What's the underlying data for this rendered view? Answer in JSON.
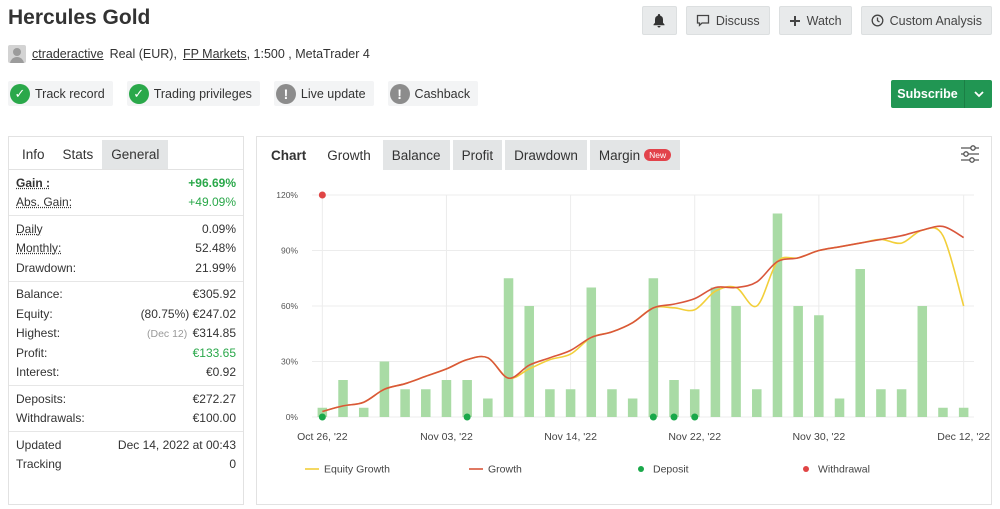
{
  "title": "Hercules Gold",
  "actions": {
    "discuss": "Discuss",
    "watch": "Watch",
    "custom": "Custom Analysis"
  },
  "account": {
    "user": "ctraderactive",
    "type": "Real (EUR),",
    "broker": "FP Markets",
    "details": ", 1:500 , MetaTrader 4"
  },
  "badges": [
    {
      "label": "Track record",
      "status": "ok"
    },
    {
      "label": "Trading privileges",
      "status": "ok"
    },
    {
      "label": "Live update",
      "status": "warn"
    },
    {
      "label": "Cashback",
      "status": "warn"
    }
  ],
  "subscribe": "Subscribe",
  "left_tabs": [
    "Info",
    "Stats",
    "General"
  ],
  "stats": {
    "gain": {
      "k": "Gain :",
      "v": "+96.69%"
    },
    "abs_gain": {
      "k": "Abs. Gain:",
      "v": "+49.09%"
    },
    "daily": {
      "k": "Daily",
      "v": "0.09%"
    },
    "monthly": {
      "k": "Monthly:",
      "v": "52.48%"
    },
    "drawdown": {
      "k": "Drawdown:",
      "v": "21.99%"
    },
    "balance": {
      "k": "Balance:",
      "v": "€305.92"
    },
    "equity": {
      "k": "Equity:",
      "note": "(80.75%)",
      "v": "€247.02"
    },
    "highest": {
      "k": "Highest:",
      "note": "(Dec 12)",
      "v": "€314.85"
    },
    "profit": {
      "k": "Profit:",
      "v": "€133.65"
    },
    "interest": {
      "k": "Interest:",
      "v": "€0.92"
    },
    "deposits": {
      "k": "Deposits:",
      "v": "€272.27"
    },
    "withdrawals": {
      "k": "Withdrawals:",
      "v": "€100.00"
    },
    "updated": {
      "k": "Updated",
      "v": "Dec 14, 2022 at 00:43"
    },
    "tracking": {
      "k": "Tracking",
      "v": "0"
    }
  },
  "chart_tabs": {
    "chart": "Chart",
    "growth": "Growth",
    "balance": "Balance",
    "profit": "Profit",
    "drawdown": "Drawdown",
    "margin": "Margin",
    "new": "New"
  },
  "colors": {
    "equity": "#f2cf3a",
    "growth": "#d9563b",
    "deposit": "#1aa84a",
    "withdrawal": "#e04545",
    "bar": "#a9dba5"
  },
  "chart_data": {
    "type": "bar+line",
    "y_ticks": [
      "0%",
      "30%",
      "60%",
      "90%",
      "120%"
    ],
    "ylim": [
      0,
      120
    ],
    "x_ticks": [
      "Oct 26, '22",
      "Nov 03, '22",
      "Nov 14, '22",
      "Nov 22, '22",
      "Nov 30, '22",
      "Dec 12, '22"
    ],
    "bars": [
      5,
      20,
      5,
      30,
      15,
      15,
      20,
      20,
      10,
      75,
      60,
      15,
      15,
      70,
      15,
      10,
      75,
      20,
      15,
      70,
      60,
      15,
      110,
      60,
      55,
      10,
      80,
      15,
      15,
      60,
      5,
      5
    ],
    "growth": [
      3,
      6,
      8,
      15,
      18,
      22,
      26,
      31,
      32,
      21,
      28,
      32,
      36,
      43,
      46,
      51,
      59,
      61,
      64,
      70,
      70,
      73,
      84,
      86,
      90,
      92,
      94,
      96,
      98,
      101,
      103,
      97
    ],
    "equity": [
      3,
      6,
      8,
      15,
      18,
      22,
      26,
      31,
      32,
      21,
      26,
      31,
      34,
      43,
      46,
      51,
      59,
      59,
      58,
      68,
      70,
      60,
      84,
      86,
      90,
      92,
      94,
      96,
      94,
      101,
      98,
      60
    ],
    "deposits_at": [
      0,
      7,
      16,
      17,
      18
    ],
    "withdrawals": [
      {
        "index": 0,
        "value": 120
      }
    ],
    "legend": [
      "Equity Growth",
      "Growth",
      "Deposit",
      "Withdrawal"
    ]
  }
}
